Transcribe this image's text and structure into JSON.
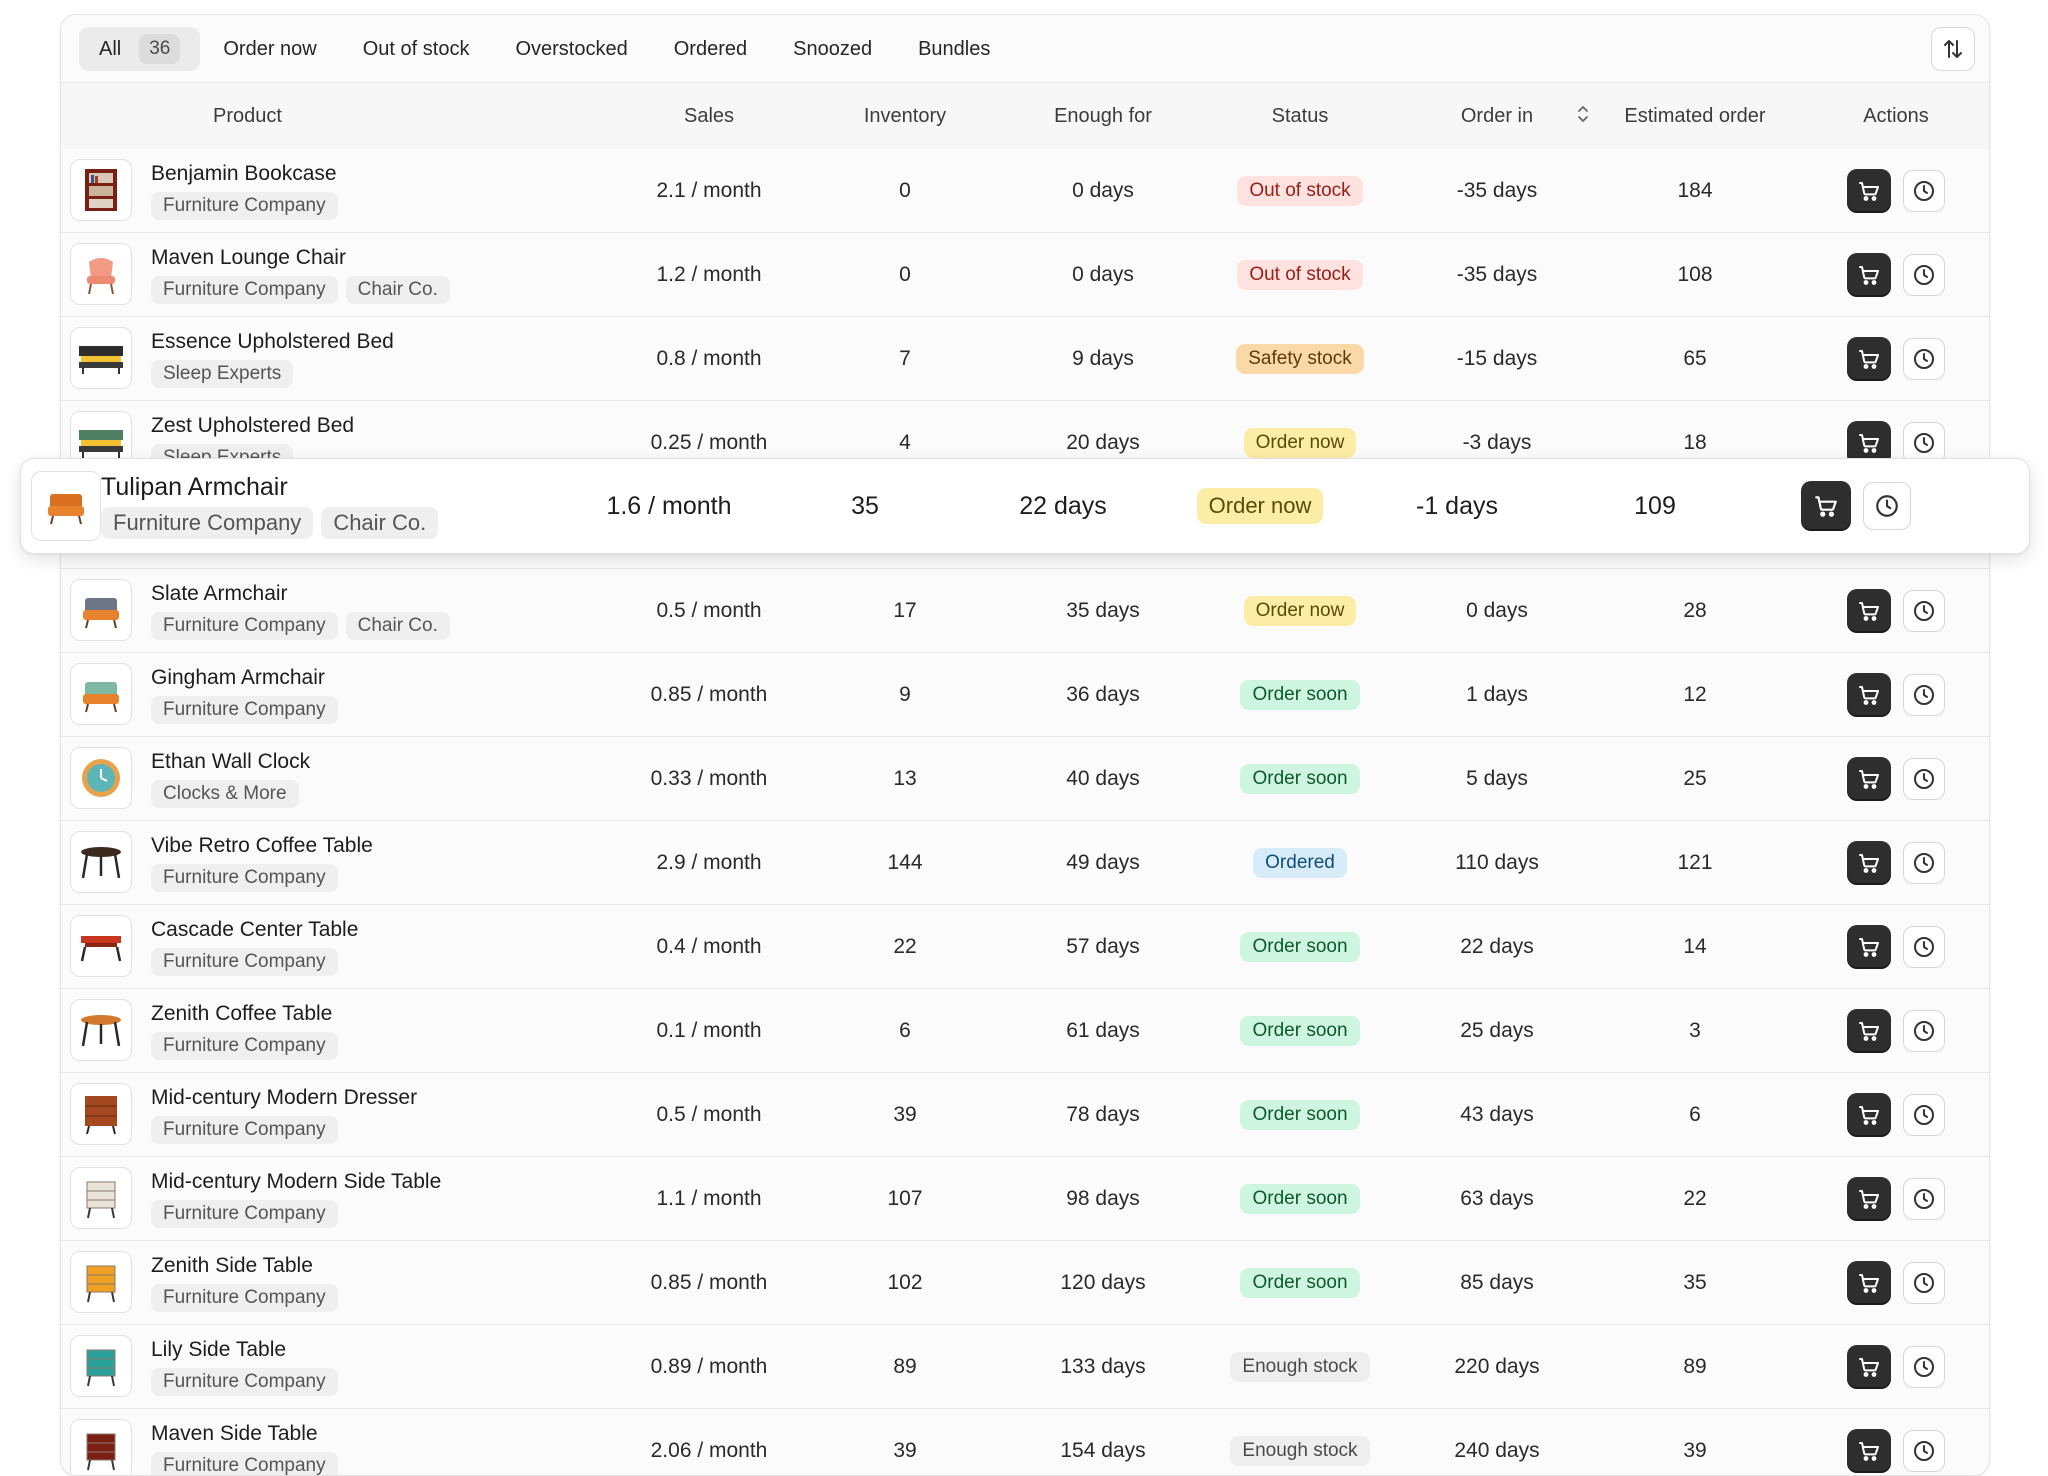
{
  "tabs": [
    {
      "label": "All",
      "count": "36",
      "active": true
    },
    {
      "label": "Order now"
    },
    {
      "label": "Out of stock"
    },
    {
      "label": "Overstocked"
    },
    {
      "label": "Ordered"
    },
    {
      "label": "Snoozed"
    },
    {
      "label": "Bundles"
    }
  ],
  "columns": {
    "product": "Product",
    "sales": "Sales",
    "inventory": "Inventory",
    "enough_for": "Enough for",
    "status": "Status",
    "order_in": "Order in",
    "estimated_order": "Estimated order",
    "actions": "Actions"
  },
  "colors": {
    "out_of_stock": "#fde2e0",
    "safety_stock": "#fbd8a8",
    "order_now": "#fbeca6",
    "order_soon": "#cdf5df",
    "ordered": "#d7ecf8",
    "enough_stock": "#eeeeee"
  },
  "rows": [
    {
      "name": "Benjamin Bookcase",
      "tags": [
        "Furniture Company"
      ],
      "sales": "2.1 / month",
      "inventory": "0",
      "enough_for": "0 days",
      "status": "Out of stock",
      "status_kind": "out",
      "order_in": "-35 days",
      "estimated": "184",
      "icon": "bookcase-icon"
    },
    {
      "name": "Maven Lounge Chair",
      "tags": [
        "Furniture Company",
        "Chair Co."
      ],
      "sales": "1.2 / month",
      "inventory": "0",
      "enough_for": "0 days",
      "status": "Out of stock",
      "status_kind": "out",
      "order_in": "-35 days",
      "estimated": "108",
      "icon": "lounge-chair-icon"
    },
    {
      "name": "Essence Upholstered Bed",
      "tags": [
        "Sleep Experts"
      ],
      "sales": "0.8 / month",
      "inventory": "7",
      "enough_for": "9 days",
      "status": "Safety stock",
      "status_kind": "safety",
      "order_in": "-15 days",
      "estimated": "65",
      "icon": "bed-icon"
    },
    {
      "name": "Zest Upholstered Bed",
      "tags": [
        "Sleep Experts"
      ],
      "sales": "0.25 / month",
      "inventory": "4",
      "enough_for": "20 days",
      "status": "Order now",
      "status_kind": "now",
      "order_in": "-3 days",
      "estimated": "18",
      "icon": "bed-icon"
    },
    {
      "name": "Tulipan Armchair",
      "tags": [
        "Furniture Company",
        "Chair Co."
      ],
      "sales": "1.6 / month",
      "inventory": "35",
      "enough_for": "22 days",
      "status": "Order now",
      "status_kind": "now",
      "order_in": "-1 days",
      "estimated": "109",
      "icon": "armchair-icon",
      "highlighted": true
    },
    {
      "name": "Slate Armchair",
      "tags": [
        "Furniture Company",
        "Chair Co."
      ],
      "sales": "0.5  / month",
      "inventory": "17",
      "enough_for": "35 days",
      "status": "Order now",
      "status_kind": "now",
      "order_in": "0 days",
      "estimated": "28",
      "icon": "armchair-icon"
    },
    {
      "name": "Gingham Armchair",
      "tags": [
        "Furniture Company"
      ],
      "sales": "0.85  / month",
      "inventory": "9",
      "enough_for": "36 days",
      "status": "Order soon",
      "status_kind": "soon",
      "order_in": "1 days",
      "estimated": "12",
      "icon": "armchair-icon"
    },
    {
      "name": "Ethan Wall Clock",
      "tags": [
        "Clocks & More"
      ],
      "sales": "0.33 / month",
      "inventory": "13",
      "enough_for": "40 days",
      "status": "Order soon",
      "status_kind": "soon",
      "order_in": "5 days",
      "estimated": "25",
      "icon": "wall-clock-icon"
    },
    {
      "name": "Vibe Retro Coffee Table",
      "tags": [
        "Furniture Company"
      ],
      "sales": "2.9 / month",
      "inventory": "144",
      "enough_for": "49 days",
      "status": "Ordered",
      "status_kind": "ordered",
      "order_in": "110 days",
      "estimated": "121",
      "icon": "coffee-table-icon"
    },
    {
      "name": "Cascade Center Table",
      "tags": [
        "Furniture Company"
      ],
      "sales": "0.4 / month",
      "inventory": "22",
      "enough_for": "57 days",
      "status": "Order soon",
      "status_kind": "soon",
      "order_in": "22 days",
      "estimated": "14",
      "icon": "table-icon"
    },
    {
      "name": "Zenith Coffee Table",
      "tags": [
        "Furniture Company"
      ],
      "sales": "0.1 / month",
      "inventory": "6",
      "enough_for": "61 days",
      "status": "Order soon",
      "status_kind": "soon",
      "order_in": "25 days",
      "estimated": "3",
      "icon": "coffee-table-icon"
    },
    {
      "name": "Mid-century Modern Dresser",
      "tags": [
        "Furniture Company"
      ],
      "sales": "0.5 / month",
      "inventory": "39",
      "enough_for": "78 days",
      "status": "Order soon",
      "status_kind": "soon",
      "order_in": "43 days",
      "estimated": "6",
      "icon": "dresser-icon"
    },
    {
      "name": "Mid-century Modern Side Table",
      "tags": [
        "Furniture Company"
      ],
      "sales": "1.1 / month",
      "inventory": "107",
      "enough_for": "98 days",
      "status": "Order soon",
      "status_kind": "soon",
      "order_in": "63 days",
      "estimated": "22",
      "icon": "side-table-icon"
    },
    {
      "name": "Zenith Side Table",
      "tags": [
        "Furniture Company"
      ],
      "sales": "0.85 / month",
      "inventory": "102",
      "enough_for": "120 days",
      "status": "Order soon",
      "status_kind": "soon",
      "order_in": "85 days",
      "estimated": "35",
      "icon": "side-table-icon"
    },
    {
      "name": "Lily Side Table",
      "tags": [
        "Furniture Company"
      ],
      "sales": "0.89 / month",
      "inventory": "89",
      "enough_for": "133 days",
      "status": "Enough stock",
      "status_kind": "enough",
      "order_in": "220 days",
      "estimated": "89",
      "icon": "side-table-icon"
    },
    {
      "name": "Maven Side Table",
      "tags": [
        "Furniture Company"
      ],
      "sales": "2.06 / month",
      "inventory": "39",
      "enough_for": "154 days",
      "status": "Enough stock",
      "status_kind": "enough",
      "order_in": "240 days",
      "estimated": "39",
      "icon": "side-table-icon"
    }
  ]
}
